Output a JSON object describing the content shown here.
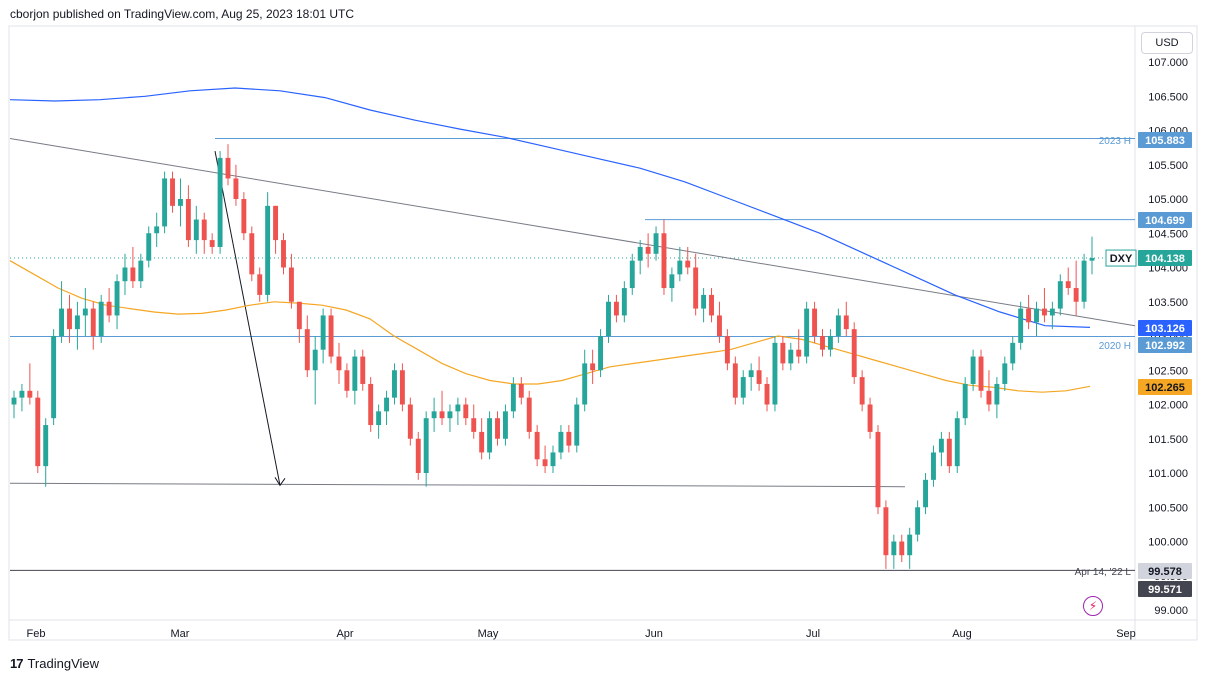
{
  "header": {
    "text": "cborjon published on TradingView.com, Aug 25, 2023 18:01 UTC"
  },
  "footer": {
    "brand": "TradingView",
    "mark": "17"
  },
  "controls": {
    "currency": "USD"
  },
  "icons": {
    "lightning": "lightning-icon"
  },
  "colors": {
    "up": "#26a69a",
    "down": "#ef5350",
    "ma_fast": "#f5a623",
    "ma_slow": "#2962ff",
    "trendline": "#787b86",
    "level": "#5b9bd5"
  },
  "chart_data": {
    "type": "candlestick",
    "symbol": "DXY",
    "y_ticks": [
      "107.000",
      "106.500",
      "106.000",
      "105.500",
      "105.000",
      "104.500",
      "104.000",
      "103.500",
      "103.000",
      "102.500",
      "102.000",
      "101.500",
      "101.000",
      "100.500",
      "100.000",
      "99.500",
      "99.000"
    ],
    "x_ticks": [
      "Feb",
      "Mar",
      "Apr",
      "May",
      "Jun",
      "Jul",
      "Aug",
      "Sep"
    ],
    "ylim": [
      98.7,
      107.5
    ],
    "level_labels": [
      {
        "name": "2023 H",
        "value": 105.883,
        "label": "105.883"
      },
      {
        "name": "",
        "value": 104.699,
        "label": "104.699"
      },
      {
        "name": "DXY",
        "value": 104.138,
        "label": "104.138"
      },
      {
        "name": "",
        "value": 103.126,
        "label": "103.126"
      },
      {
        "name": "2020 H",
        "value": 102.992,
        "label": "102.992"
      },
      {
        "name": "",
        "value": 102.265,
        "label": "102.265"
      },
      {
        "name": "Apr 14, '22 L",
        "value": 99.578,
        "label": "99.578"
      },
      {
        "name": "",
        "value": 99.571,
        "label": "99.571"
      }
    ],
    "candles": [
      [
        102.0,
        102.2,
        101.8,
        102.1
      ],
      [
        102.1,
        102.3,
        101.9,
        102.2
      ],
      [
        102.2,
        102.6,
        102.0,
        102.1
      ],
      [
        102.1,
        102.2,
        101.0,
        101.1
      ],
      [
        101.1,
        101.8,
        100.8,
        101.7
      ],
      [
        101.8,
        103.1,
        101.7,
        103.0
      ],
      [
        103.0,
        103.8,
        102.9,
        103.4
      ],
      [
        103.4,
        103.6,
        102.9,
        103.1
      ],
      [
        103.1,
        103.5,
        102.8,
        103.3
      ],
      [
        103.3,
        103.7,
        103.0,
        103.4
      ],
      [
        103.4,
        103.5,
        102.8,
        103.0
      ],
      [
        103.0,
        103.6,
        102.9,
        103.5
      ],
      [
        103.5,
        103.7,
        103.2,
        103.3
      ],
      [
        103.3,
        103.9,
        103.1,
        103.8
      ],
      [
        103.8,
        104.2,
        103.6,
        104.0
      ],
      [
        104.0,
        104.3,
        103.7,
        103.8
      ],
      [
        103.8,
        104.2,
        103.7,
        104.1
      ],
      [
        104.1,
        104.6,
        104.0,
        104.5
      ],
      [
        104.5,
        104.8,
        104.3,
        104.6
      ],
      [
        104.6,
        105.4,
        104.5,
        105.3
      ],
      [
        105.3,
        105.4,
        104.8,
        104.9
      ],
      [
        104.9,
        105.3,
        104.6,
        105.0
      ],
      [
        105.0,
        105.2,
        104.3,
        104.4
      ],
      [
        104.4,
        104.9,
        104.2,
        104.7
      ],
      [
        104.7,
        104.8,
        104.2,
        104.4
      ],
      [
        104.4,
        104.5,
        104.2,
        104.3
      ],
      [
        104.3,
        105.7,
        104.2,
        105.6
      ],
      [
        105.6,
        105.8,
        105.2,
        105.3
      ],
      [
        105.3,
        105.5,
        104.9,
        105.0
      ],
      [
        105.0,
        105.1,
        104.4,
        104.5
      ],
      [
        104.5,
        104.6,
        103.8,
        103.9
      ],
      [
        103.9,
        104.0,
        103.5,
        103.6
      ],
      [
        103.6,
        105.1,
        103.5,
        104.9
      ],
      [
        104.9,
        104.9,
        104.2,
        104.4
      ],
      [
        104.4,
        104.5,
        103.9,
        104.0
      ],
      [
        104.0,
        104.2,
        103.4,
        103.5
      ],
      [
        103.5,
        103.5,
        102.9,
        103.1
      ],
      [
        103.1,
        103.3,
        102.4,
        102.5
      ],
      [
        102.5,
        103.0,
        102.0,
        102.8
      ],
      [
        102.8,
        103.4,
        102.6,
        103.3
      ],
      [
        103.3,
        103.4,
        102.6,
        102.7
      ],
      [
        102.7,
        102.9,
        102.3,
        102.5
      ],
      [
        102.5,
        102.6,
        102.1,
        102.2
      ],
      [
        102.2,
        102.8,
        102.0,
        102.7
      ],
      [
        102.7,
        102.8,
        102.2,
        102.3
      ],
      [
        102.3,
        102.4,
        101.6,
        101.7
      ],
      [
        101.7,
        102.0,
        101.5,
        101.9
      ],
      [
        101.9,
        102.2,
        101.7,
        102.1
      ],
      [
        102.1,
        102.6,
        102.0,
        102.5
      ],
      [
        102.5,
        102.6,
        101.9,
        102.0
      ],
      [
        102.0,
        102.1,
        101.4,
        101.5
      ],
      [
        101.5,
        101.6,
        100.9,
        101.0
      ],
      [
        101.0,
        101.9,
        100.8,
        101.8
      ],
      [
        101.8,
        102.1,
        101.6,
        101.9
      ],
      [
        101.9,
        102.2,
        101.7,
        101.8
      ],
      [
        101.8,
        102.0,
        101.6,
        101.9
      ],
      [
        101.9,
        102.1,
        101.7,
        102.0
      ],
      [
        102.0,
        102.1,
        101.7,
        101.8
      ],
      [
        101.8,
        102.0,
        101.5,
        101.6
      ],
      [
        101.6,
        101.8,
        101.2,
        101.3
      ],
      [
        101.3,
        101.9,
        101.2,
        101.8
      ],
      [
        101.8,
        101.9,
        101.4,
        101.5
      ],
      [
        101.5,
        102.0,
        101.4,
        101.9
      ],
      [
        101.9,
        102.4,
        101.8,
        102.3
      ],
      [
        102.3,
        102.4,
        102.0,
        102.1
      ],
      [
        102.1,
        102.2,
        101.5,
        101.6
      ],
      [
        101.6,
        101.7,
        101.1,
        101.2
      ],
      [
        101.2,
        101.4,
        101.0,
        101.1
      ],
      [
        101.1,
        101.4,
        101.0,
        101.3
      ],
      [
        101.3,
        101.7,
        101.2,
        101.6
      ],
      [
        101.6,
        101.7,
        101.3,
        101.4
      ],
      [
        101.4,
        102.1,
        101.3,
        102.0
      ],
      [
        102.0,
        102.8,
        101.9,
        102.6
      ],
      [
        102.6,
        102.8,
        102.3,
        102.5
      ],
      [
        102.5,
        103.1,
        102.4,
        103.0
      ],
      [
        103.0,
        103.6,
        102.9,
        103.5
      ],
      [
        103.5,
        103.6,
        103.2,
        103.3
      ],
      [
        103.3,
        103.8,
        103.2,
        103.7
      ],
      [
        103.7,
        104.2,
        103.6,
        104.1
      ],
      [
        104.1,
        104.4,
        103.9,
        104.3
      ],
      [
        104.3,
        104.5,
        104.0,
        104.2
      ],
      [
        104.2,
        104.6,
        104.1,
        104.5
      ],
      [
        104.5,
        104.7,
        103.6,
        103.7
      ],
      [
        103.7,
        104.0,
        103.5,
        103.9
      ],
      [
        103.9,
        104.3,
        103.8,
        104.1
      ],
      [
        104.1,
        104.3,
        103.9,
        104.0
      ],
      [
        104.0,
        104.2,
        103.3,
        103.4
      ],
      [
        103.4,
        103.7,
        103.2,
        103.6
      ],
      [
        103.6,
        103.7,
        103.2,
        103.3
      ],
      [
        103.3,
        103.5,
        102.9,
        103.0
      ],
      [
        103.0,
        103.1,
        102.5,
        102.6
      ],
      [
        102.6,
        102.7,
        102.0,
        102.1
      ],
      [
        102.1,
        102.5,
        102.0,
        102.4
      ],
      [
        102.4,
        102.6,
        102.2,
        102.5
      ],
      [
        102.5,
        102.7,
        102.2,
        102.3
      ],
      [
        102.3,
        102.4,
        101.9,
        102.0
      ],
      [
        102.0,
        103.0,
        101.9,
        102.9
      ],
      [
        102.9,
        103.0,
        102.5,
        102.6
      ],
      [
        102.6,
        102.9,
        102.5,
        102.8
      ],
      [
        102.8,
        103.1,
        102.6,
        102.7
      ],
      [
        102.7,
        103.5,
        102.6,
        103.4
      ],
      [
        103.4,
        103.5,
        102.9,
        103.0
      ],
      [
        103.0,
        103.1,
        102.7,
        102.8
      ],
      [
        102.8,
        103.1,
        102.7,
        103.0
      ],
      [
        103.0,
        103.4,
        102.9,
        103.3
      ],
      [
        103.3,
        103.5,
        103.0,
        103.1
      ],
      [
        103.1,
        103.2,
        102.3,
        102.4
      ],
      [
        102.4,
        102.5,
        101.9,
        102.0
      ],
      [
        102.0,
        102.1,
        101.5,
        101.6
      ],
      [
        101.6,
        101.7,
        100.4,
        100.5
      ],
      [
        100.5,
        100.6,
        99.6,
        99.8
      ],
      [
        99.8,
        100.1,
        99.6,
        100.0
      ],
      [
        100.0,
        100.1,
        99.7,
        99.8
      ],
      [
        99.8,
        100.2,
        99.6,
        100.1
      ],
      [
        100.1,
        100.6,
        100.0,
        100.5
      ],
      [
        100.5,
        101.0,
        100.4,
        100.9
      ],
      [
        100.9,
        101.4,
        100.8,
        101.3
      ],
      [
        101.3,
        101.6,
        101.1,
        101.5
      ],
      [
        101.5,
        101.6,
        101.0,
        101.1
      ],
      [
        101.1,
        101.9,
        101.0,
        101.8
      ],
      [
        101.8,
        102.4,
        101.7,
        102.3
      ],
      [
        102.3,
        102.8,
        102.2,
        102.7
      ],
      [
        102.7,
        102.8,
        102.1,
        102.2
      ],
      [
        102.2,
        102.5,
        101.9,
        102.0
      ],
      [
        102.0,
        102.4,
        101.8,
        102.3
      ],
      [
        102.3,
        102.7,
        102.2,
        102.6
      ],
      [
        102.6,
        103.0,
        102.5,
        102.9
      ],
      [
        102.9,
        103.5,
        102.8,
        103.4
      ],
      [
        103.4,
        103.6,
        103.1,
        103.2
      ],
      [
        103.2,
        103.5,
        103.0,
        103.4
      ],
      [
        103.4,
        103.7,
        103.2,
        103.3
      ],
      [
        103.3,
        103.5,
        103.1,
        103.4
      ],
      [
        103.4,
        103.9,
        103.3,
        103.8
      ],
      [
        103.8,
        104.0,
        103.6,
        103.7
      ],
      [
        103.7,
        104.1,
        103.3,
        103.5
      ],
      [
        103.5,
        104.2,
        103.4,
        104.1
      ],
      [
        104.1,
        104.45,
        103.9,
        104.138
      ]
    ],
    "moving_averages": [
      {
        "color": "#f5a623",
        "values": [
          104.1,
          103.9,
          103.7,
          103.55,
          103.45,
          103.4,
          103.35,
          103.32,
          103.33,
          103.38,
          103.45,
          103.5,
          103.48,
          103.45,
          103.38,
          103.25,
          103.0,
          102.8,
          102.6,
          102.45,
          102.35,
          102.3,
          102.3,
          102.35,
          102.45,
          102.55,
          102.6,
          102.65,
          102.7,
          102.75,
          102.8,
          102.9,
          103.0,
          102.95,
          102.85,
          102.75,
          102.65,
          102.55,
          102.45,
          102.35,
          102.28,
          102.25,
          102.2,
          102.18,
          102.2,
          102.265
        ]
      },
      {
        "color": "#2962ff",
        "values": [
          106.45,
          106.43,
          106.45,
          106.5,
          106.58,
          106.62,
          106.58,
          106.48,
          106.3,
          106.15,
          106.02,
          105.9,
          105.75,
          105.6,
          105.45,
          105.25,
          105.0,
          104.75,
          104.5,
          104.2,
          103.9,
          103.6,
          103.35,
          103.15,
          103.126
        ]
      }
    ],
    "trendlines": [
      {
        "from": [
          10,
          105.883
        ],
        "to": [
          1135,
          103.15
        ]
      },
      {
        "from": [
          10,
          100.85
        ],
        "to": [
          905,
          100.8
        ]
      },
      {
        "from": [
          215,
          105.7
        ],
        "to": [
          280,
          100.82
        ]
      }
    ],
    "horizontal_levels": [
      {
        "value": 105.883,
        "x_start": 215
      },
      {
        "value": 104.699,
        "x_start": 645
      },
      {
        "value": 102.992,
        "x_start": 10
      },
      {
        "value": 99.578,
        "x_start": 10
      }
    ]
  }
}
